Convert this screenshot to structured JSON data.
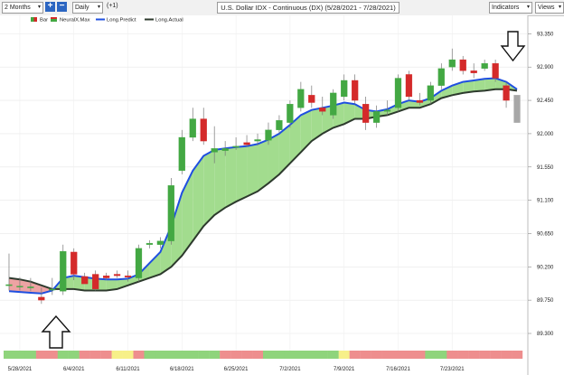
{
  "toolbar": {
    "period": "2 Months",
    "interval": "Daily",
    "offset": "(+1)",
    "plus_symbol": "+",
    "minus_symbol": "−",
    "title": "U.S. Dollar IDX - Continuous (DX) (5/28/2021 - 7/28/2021)",
    "indicators": "Indicators",
    "views": "Views",
    "caret_symbol": "▾"
  },
  "legend": {
    "items": [
      "Bar",
      "NeuralX.Max",
      "Long.Predict",
      "Long.Actual"
    ]
  },
  "colors": {
    "up": "#43a843",
    "down": "#d42a2a",
    "predict": "#1f4fe0",
    "actual": "#2d3a2d",
    "fill_pos": "#a2dc8e",
    "fill_neg": "#eda3a3",
    "last_bar": "#a7a7a7"
  },
  "icons": {
    "up_arrow": "up-arrow-icon",
    "down_arrow": "down-arrow-icon"
  },
  "chart_data": {
    "type": "candlestick",
    "ylim": [
      89.3,
      93.55
    ],
    "y_ticks": [
      "93.350",
      "92.900",
      "92.450",
      "92.000",
      "91.550",
      "91.100",
      "90.650",
      "90.200",
      "89.750",
      "89.300"
    ],
    "x_ticks": [
      "5/28/2021",
      "6/4/2021",
      "6/11/2021",
      "6/18/2021",
      "6/25/2021",
      "7/2/2021",
      "7/9/2021",
      "7/16/2021",
      "7/23/2021"
    ],
    "bars": [
      {
        "o": 89.96,
        "h": 90.38,
        "l": 89.88,
        "c": 89.96
      },
      {
        "o": 89.94,
        "h": 90.06,
        "l": 89.88,
        "c": 89.94
      },
      {
        "o": 89.93,
        "h": 90.05,
        "l": 89.87,
        "c": 89.93
      },
      {
        "o": 89.79,
        "h": 89.92,
        "l": 89.7,
        "c": 89.75
      },
      {
        "o": 89.9,
        "h": 90.05,
        "l": 89.82,
        "c": 89.9
      },
      {
        "o": 89.87,
        "h": 90.5,
        "l": 89.82,
        "c": 90.41
      },
      {
        "o": 90.4,
        "h": 90.45,
        "l": 90.02,
        "c": 90.1
      },
      {
        "o": 90.07,
        "h": 90.12,
        "l": 89.97,
        "c": 89.97
      },
      {
        "o": 90.1,
        "h": 90.15,
        "l": 89.88,
        "c": 89.9
      },
      {
        "o": 90.08,
        "h": 90.12,
        "l": 90.02,
        "c": 90.05
      },
      {
        "o": 90.1,
        "h": 90.15,
        "l": 90.05,
        "c": 90.08
      },
      {
        "o": 90.08,
        "h": 90.15,
        "l": 90.0,
        "c": 90.06
      },
      {
        "o": 90.05,
        "h": 90.5,
        "l": 90.0,
        "c": 90.45
      },
      {
        "o": 90.5,
        "h": 90.56,
        "l": 90.45,
        "c": 90.52
      },
      {
        "o": 90.5,
        "h": 90.6,
        "l": 90.45,
        "c": 90.55
      },
      {
        "o": 90.55,
        "h": 91.4,
        "l": 90.5,
        "c": 91.3
      },
      {
        "o": 91.5,
        "h": 92.05,
        "l": 91.45,
        "c": 91.95
      },
      {
        "o": 91.95,
        "h": 92.35,
        "l": 91.9,
        "c": 92.2
      },
      {
        "o": 92.2,
        "h": 92.35,
        "l": 91.85,
        "c": 91.9
      },
      {
        "o": 91.75,
        "h": 92.1,
        "l": 91.6,
        "c": 91.8
      },
      {
        "o": 91.77,
        "h": 91.9,
        "l": 91.7,
        "c": 91.8
      },
      {
        "o": 91.82,
        "h": 91.95,
        "l": 91.78,
        "c": 91.83
      },
      {
        "o": 91.88,
        "h": 91.98,
        "l": 91.82,
        "c": 91.85
      },
      {
        "o": 91.9,
        "h": 92.0,
        "l": 91.84,
        "c": 91.92
      },
      {
        "o": 91.91,
        "h": 92.15,
        "l": 91.85,
        "c": 92.05
      },
      {
        "o": 92.05,
        "h": 92.25,
        "l": 92.0,
        "c": 92.18
      },
      {
        "o": 92.15,
        "h": 92.45,
        "l": 92.08,
        "c": 92.4
      },
      {
        "o": 92.35,
        "h": 92.7,
        "l": 92.3,
        "c": 92.6
      },
      {
        "o": 92.52,
        "h": 92.65,
        "l": 92.35,
        "c": 92.42
      },
      {
        "o": 92.35,
        "h": 92.5,
        "l": 92.25,
        "c": 92.3
      },
      {
        "o": 92.25,
        "h": 92.6,
        "l": 92.2,
        "c": 92.55
      },
      {
        "o": 92.5,
        "h": 92.8,
        "l": 92.45,
        "c": 92.72
      },
      {
        "o": 92.72,
        "h": 92.8,
        "l": 92.4,
        "c": 92.45
      },
      {
        "o": 92.4,
        "h": 92.5,
        "l": 92.05,
        "c": 92.15
      },
      {
        "o": 92.15,
        "h": 92.38,
        "l": 92.08,
        "c": 92.3
      },
      {
        "o": 92.3,
        "h": 92.45,
        "l": 92.25,
        "c": 92.32
      },
      {
        "o": 92.35,
        "h": 92.8,
        "l": 92.3,
        "c": 92.75
      },
      {
        "o": 92.8,
        "h": 92.85,
        "l": 92.45,
        "c": 92.5
      },
      {
        "o": 92.45,
        "h": 92.55,
        "l": 92.38,
        "c": 92.42
      },
      {
        "o": 92.45,
        "h": 92.7,
        "l": 92.4,
        "c": 92.65
      },
      {
        "o": 92.65,
        "h": 92.95,
        "l": 92.6,
        "c": 92.88
      },
      {
        "o": 92.9,
        "h": 93.15,
        "l": 92.85,
        "c": 93.0
      },
      {
        "o": 93.0,
        "h": 93.05,
        "l": 92.8,
        "c": 92.85
      },
      {
        "o": 92.85,
        "h": 92.95,
        "l": 92.75,
        "c": 92.82
      },
      {
        "o": 92.88,
        "h": 93.0,
        "l": 92.85,
        "c": 92.95
      },
      {
        "o": 92.95,
        "h": 93.0,
        "l": 92.7,
        "c": 92.75
      },
      {
        "o": 92.65,
        "h": 92.7,
        "l": 92.35,
        "c": 92.45
      },
      {
        "o": 92.52,
        "h": 92.52,
        "l": 92.15,
        "c": 92.15
      }
    ],
    "long_predict": [
      89.87,
      89.86,
      89.85,
      89.84,
      89.88,
      90.05,
      90.08,
      90.06,
      90.04,
      90.03,
      90.03,
      90.04,
      90.1,
      90.25,
      90.4,
      90.75,
      91.2,
      91.5,
      91.7,
      91.78,
      91.8,
      91.82,
      91.83,
      91.86,
      91.92,
      92.0,
      92.12,
      92.25,
      92.32,
      92.35,
      92.38,
      92.42,
      92.4,
      92.32,
      92.3,
      92.33,
      92.4,
      92.45,
      92.43,
      92.48,
      92.58,
      92.65,
      92.7,
      92.72,
      92.74,
      92.75,
      92.7,
      92.6
    ],
    "long_actual": [
      90.05,
      90.03,
      90.0,
      89.95,
      89.9,
      89.9,
      89.9,
      89.88,
      89.88,
      89.88,
      89.9,
      89.95,
      90.0,
      90.05,
      90.1,
      90.2,
      90.35,
      90.55,
      90.75,
      90.9,
      91.0,
      91.08,
      91.15,
      91.22,
      91.33,
      91.45,
      91.6,
      91.75,
      91.9,
      92.0,
      92.08,
      92.13,
      92.2,
      92.2,
      92.23,
      92.25,
      92.3,
      92.35,
      92.35,
      92.4,
      92.48,
      92.52,
      92.55,
      92.57,
      92.58,
      92.6,
      92.6,
      92.58
    ],
    "signal_strip": [
      "green",
      "green",
      "green",
      "red",
      "red",
      "green",
      "green",
      "red",
      "red",
      "red",
      "yellow",
      "yellow",
      "red",
      "green",
      "green",
      "green",
      "green",
      "green",
      "green",
      "green",
      "red",
      "red",
      "red",
      "red",
      "green",
      "green",
      "green",
      "green",
      "green",
      "green",
      "green",
      "yellow",
      "red",
      "red",
      "red",
      "red",
      "red",
      "red",
      "red",
      "green",
      "green",
      "red",
      "red",
      "red",
      "red",
      "red",
      "red",
      "red"
    ]
  }
}
